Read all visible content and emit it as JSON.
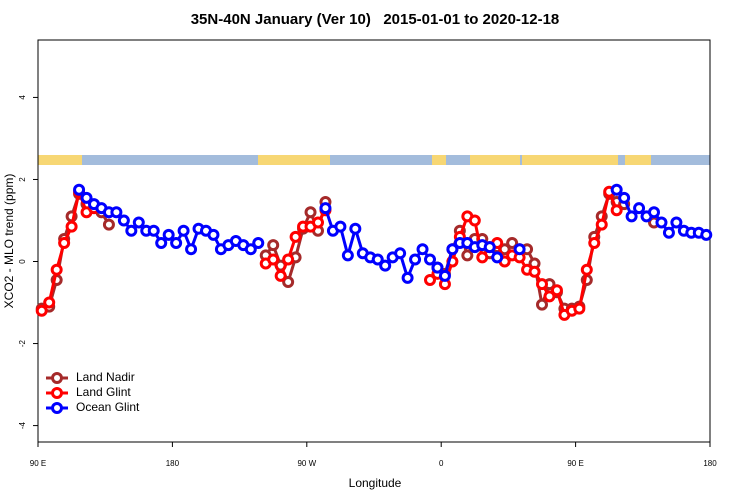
{
  "chart_data": {
    "type": "line",
    "title": "35N-40N January (Ver 10)   2015-01-01 to 2020-12-18",
    "x_label": "Longitude",
    "y_label": "XCO2 - MLO trend (ppm)",
    "xlim": [
      90,
      540
    ],
    "ylim": [
      -4.4,
      5.4
    ],
    "xticks": [
      {
        "value": 90,
        "label": "90 E"
      },
      180,
      {
        "value": 270,
        "label": "90 W"
      },
      {
        "value": 360,
        "label": "0"
      },
      {
        "value": 450,
        "label": "90 E"
      },
      {
        "value": 540,
        "label": "180"
      }
    ],
    "yticks": [
      -4,
      -2,
      0,
      2,
      4
    ],
    "legend": "bottom-left",
    "series": [
      {
        "name": "Land Nadir",
        "color": "#a52a2a",
        "x": [
          92.5,
          97.5,
          102.5,
          107.5,
          112.5,
          117.5,
          122.5,
          127.5,
          132.5,
          137.5,
          190,
          242.5,
          247.5,
          252.5,
          257.5,
          262.5,
          267.5,
          272.5,
          277.5,
          282.5,
          320,
          357.5,
          362.5,
          367.5,
          372.5,
          377.5,
          382.5,
          387.5,
          392.5,
          397.5,
          402.5,
          407.5,
          412.5,
          417.5,
          422.5,
          427.5,
          432.5,
          437.5,
          442.5,
          447.5,
          452.5,
          457.5,
          462.5,
          467.5,
          472.5,
          477.5,
          482.5,
          490,
          502.5
        ],
        "values": [
          -1.15,
          -1.1,
          -0.45,
          0.55,
          1.1,
          1.65,
          1.4,
          1.3,
          1.2,
          0.9,
          null,
          0.15,
          0.4,
          -0.1,
          -0.5,
          0.1,
          0.8,
          1.2,
          0.75,
          1.45,
          null,
          -0.15,
          -0.3,
          0.3,
          0.75,
          0.15,
          0.55,
          0.55,
          0.2,
          0.35,
          0.3,
          0.45,
          0.3,
          0.3,
          -0.05,
          -1.05,
          -0.55,
          -0.75,
          -1.15,
          -1.15,
          -1.1,
          -0.45,
          0.6,
          1.1,
          1.65,
          1.45,
          1.4,
          null,
          0.95
        ]
      },
      {
        "name": "Land Glint",
        "color": "#ff0000",
        "x": [
          92.5,
          97.5,
          102.5,
          107.5,
          112.5,
          117.5,
          122.5,
          127.5,
          190,
          242.5,
          247.5,
          252.5,
          257.5,
          262.5,
          267.5,
          272.5,
          277.5,
          282.5,
          320,
          352.5,
          357.5,
          362.5,
          367.5,
          372.5,
          377.5,
          382.5,
          387.5,
          392.5,
          397.5,
          402.5,
          407.5,
          412.5,
          417.5,
          422.5,
          427.5,
          432.5,
          437.5,
          442.5,
          447.5,
          452.5,
          457.5,
          462.5,
          467.5,
          472.5,
          477.5
        ],
        "values": [
          -1.2,
          -1.0,
          -0.2,
          0.45,
          0.85,
          1.7,
          1.2,
          1.3,
          null,
          -0.05,
          0.05,
          -0.35,
          0.05,
          0.6,
          0.85,
          0.85,
          0.95,
          1.25,
          null,
          -0.45,
          -0.3,
          -0.55,
          0.0,
          0.6,
          1.1,
          1.0,
          0.1,
          0.35,
          0.45,
          0.0,
          0.15,
          0.1,
          -0.2,
          -0.25,
          -0.55,
          -0.85,
          -0.7,
          -1.3,
          -1.2,
          -1.15,
          -0.2,
          0.45,
          0.9,
          1.7,
          1.25
        ]
      },
      {
        "name": "Ocean Glint",
        "color": "#0000ff",
        "x": [
          117.5,
          122.5,
          127.5,
          132.5,
          137.5,
          142.5,
          147.5,
          152.5,
          157.5,
          162.5,
          167.5,
          172.5,
          177.5,
          182.5,
          187.5,
          192.5,
          197.5,
          202.5,
          207.5,
          212.5,
          217.5,
          222.5,
          227.5,
          232.5,
          237.5,
          260,
          282.5,
          287.5,
          292.5,
          297.5,
          302.5,
          307.5,
          312.5,
          317.5,
          322.5,
          327.5,
          332.5,
          337.5,
          342.5,
          347.5,
          352.5,
          357.5,
          362.5,
          367.5,
          372.5,
          377.5,
          382.5,
          387.5,
          392.5,
          397.5,
          405,
          412.5,
          445,
          477.5,
          482.5,
          487.5,
          492.5,
          497.5,
          502.5,
          507.5,
          512.5,
          517.5,
          522.5,
          527.5,
          532.5,
          537.5
        ],
        "values": [
          1.75,
          1.55,
          1.4,
          1.3,
          1.2,
          1.2,
          1.0,
          0.75,
          0.95,
          0.75,
          0.75,
          0.45,
          0.65,
          0.45,
          0.75,
          0.3,
          0.8,
          0.75,
          0.65,
          0.3,
          0.4,
          0.5,
          0.4,
          0.3,
          0.45,
          null,
          1.3,
          0.75,
          0.85,
          0.15,
          0.8,
          0.2,
          0.1,
          0.05,
          -0.1,
          0.1,
          0.2,
          -0.4,
          0.05,
          0.3,
          0.05,
          -0.15,
          -0.35,
          0.3,
          0.45,
          0.45,
          0.35,
          0.4,
          0.35,
          0.1,
          null,
          0.3,
          null,
          1.75,
          1.55,
          1.1,
          1.3,
          1.1,
          1.2,
          0.95,
          0.7,
          0.95,
          0.75,
          0.7,
          0.7,
          0.65
        ]
      }
    ]
  }
}
